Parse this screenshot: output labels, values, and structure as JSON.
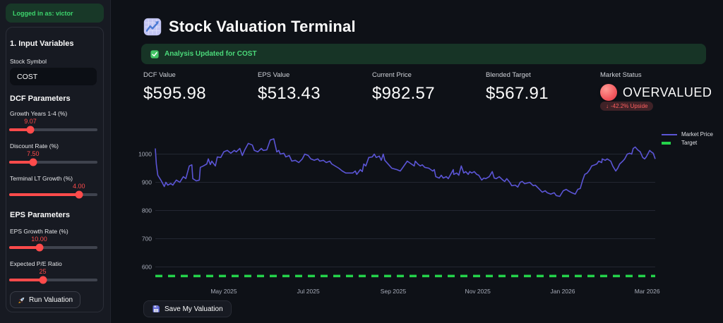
{
  "sidebar": {
    "login_banner": "Logged in as: victor",
    "section1_title": "1. Input Variables",
    "stock_symbol_label": "Stock Symbol",
    "stock_symbol_value": "COST",
    "dcf_section_title": "DCF Parameters",
    "eps_section_title": "EPS Parameters",
    "sliders": [
      {
        "label": "Growth Years 1-4 (%)",
        "value": "9.07",
        "percent": 24
      },
      {
        "label": "Discount Rate (%)",
        "value": "7.50",
        "percent": 27
      },
      {
        "label": "Terminal LT Growth (%)",
        "value": "4.00",
        "percent": 79
      },
      {
        "label": "EPS Growth Rate (%)",
        "value": "10.00",
        "percent": 34
      },
      {
        "label": "Expected P/E Ratio",
        "value": "25",
        "percent": 38
      }
    ],
    "run_button_label": "Run Valuation"
  },
  "header": {
    "title": "Stock Valuation Terminal",
    "success_message": "Analysis Updated for COST"
  },
  "metrics": {
    "items": [
      {
        "label": "DCF Value",
        "value": "$595.98"
      },
      {
        "label": "EPS Value",
        "value": "$513.43"
      },
      {
        "label": "Current Price",
        "value": "$982.57"
      },
      {
        "label": "Blended Target",
        "value": "$567.91"
      }
    ],
    "market_status": {
      "label": "Market Status",
      "status": "OVERVALUED",
      "badge_arrow": "↓",
      "badge_text": "-42.2% Upside"
    }
  },
  "icons": {
    "title": "chart-increasing",
    "banner": "check-mark-button",
    "status": "red-circle",
    "run": "rocket",
    "save": "floppy-disk"
  },
  "colors": {
    "background": "#0e1117",
    "sidebar": "#171a22",
    "accent_red": "#ff4b4b",
    "success_green": "#3dd56d",
    "market_line": "#5b55d6",
    "target_green": "#24d24a",
    "badge_red": "#ff5f5f"
  },
  "footer": {
    "save_button_label": "Save My Valuation"
  },
  "chart_data": {
    "type": "line",
    "title": "",
    "xlabel": "",
    "ylabel": "",
    "ylim": [
      560,
      1070
    ],
    "grid": true,
    "legend_position": "top-right",
    "legend": [
      "Market Price",
      "Target"
    ],
    "y_ticks": [
      600,
      700,
      800,
      900,
      1000
    ],
    "x_ticks": [
      "May 2025",
      "Jul 2025",
      "Sep 2025",
      "Nov 2025",
      "Jan 2026",
      "Mar 2026"
    ],
    "x_tick_pct": [
      13.7,
      30.6,
      47.6,
      64.5,
      81.5,
      98.4
    ],
    "series": [
      {
        "name": "Market Price",
        "type": "line",
        "color": "#5b55d6",
        "points": [
          [
            0,
            1020
          ],
          [
            0.2,
            965
          ],
          [
            0.5,
            925
          ],
          [
            1.1,
            908
          ],
          [
            1.8,
            885
          ],
          [
            2.1,
            900
          ],
          [
            2.5,
            890
          ],
          [
            3.1,
            896
          ],
          [
            3.5,
            890
          ],
          [
            4.2,
            908
          ],
          [
            4.9,
            900
          ],
          [
            5.6,
            920
          ],
          [
            6.1,
            913
          ],
          [
            6.8,
            958
          ],
          [
            7.3,
            962
          ],
          [
            7.5,
            913
          ],
          [
            8.2,
            905
          ],
          [
            8.8,
            908
          ],
          [
            9,
            953
          ],
          [
            9.6,
            958
          ],
          [
            10.3,
            965
          ],
          [
            10.6,
            983
          ],
          [
            11,
            963
          ],
          [
            11.3,
            975
          ],
          [
            12,
            958
          ],
          [
            12.4,
            990
          ],
          [
            13.1,
            988
          ],
          [
            13.7,
            1008
          ],
          [
            14.4,
            1013
          ],
          [
            15.1,
            1003
          ],
          [
            15.8,
            1013
          ],
          [
            16.2,
            1008
          ],
          [
            16.9,
            1020
          ],
          [
            17.4,
            995
          ],
          [
            17.9,
            1015
          ],
          [
            18.6,
            1038
          ],
          [
            19.4,
            1032
          ],
          [
            19.8,
            1013
          ],
          [
            20.5,
            1008
          ],
          [
            21.2,
            1020
          ],
          [
            21.6,
            1013
          ],
          [
            22.3,
            1015
          ],
          [
            23,
            1050
          ],
          [
            23.7,
            1054
          ],
          [
            24.3,
            1008
          ],
          [
            24.7,
            1013
          ],
          [
            25,
            1000
          ],
          [
            25.7,
            1003
          ],
          [
            26.1,
            990
          ],
          [
            26.8,
            995
          ],
          [
            27.3,
            975
          ],
          [
            28,
            978
          ],
          [
            28.7,
            970
          ],
          [
            29.4,
            983
          ],
          [
            29.9,
            1000
          ],
          [
            30.6,
            995
          ],
          [
            31.1,
            983
          ],
          [
            31.8,
            978
          ],
          [
            32.5,
            983
          ],
          [
            32.9,
            975
          ],
          [
            33.6,
            978
          ],
          [
            34.2,
            970
          ],
          [
            34.9,
            975
          ],
          [
            35.3,
            965
          ],
          [
            36.7,
            950
          ],
          [
            37.4,
            940
          ],
          [
            38.1,
            933
          ],
          [
            39.5,
            933
          ],
          [
            40,
            940
          ],
          [
            40.3,
            928
          ],
          [
            41,
            945
          ],
          [
            41.4,
            938
          ],
          [
            41.7,
            965
          ],
          [
            42.1,
            958
          ],
          [
            42.7,
            988
          ],
          [
            43.4,
            990
          ],
          [
            43.8,
            1000
          ],
          [
            44.2,
            988
          ],
          [
            44.8,
            993
          ],
          [
            45.2,
            978
          ],
          [
            45.6,
            1000
          ],
          [
            45.9,
            978
          ],
          [
            46.9,
            958
          ],
          [
            47.3,
            950
          ],
          [
            48.3,
            945
          ],
          [
            49,
            940
          ],
          [
            49.4,
            950
          ],
          [
            50.4,
            975
          ],
          [
            50.8,
            970
          ],
          [
            51.8,
            958
          ],
          [
            52,
            975
          ],
          [
            52.5,
            965
          ],
          [
            53,
            958
          ],
          [
            53.4,
            962
          ],
          [
            53.9,
            953
          ],
          [
            54.7,
            950
          ],
          [
            55.5,
            940
          ],
          [
            55.8,
            945
          ],
          [
            56.1,
            920
          ],
          [
            56.8,
            915
          ],
          [
            57.2,
            925
          ],
          [
            57.6,
            915
          ],
          [
            58.2,
            920
          ],
          [
            58.6,
            913
          ],
          [
            59.6,
            945
          ],
          [
            59.7,
            928
          ],
          [
            60.3,
            933
          ],
          [
            60.7,
            925
          ],
          [
            61.2,
            958
          ],
          [
            61.7,
            933
          ],
          [
            62.1,
            938
          ],
          [
            62.6,
            928
          ],
          [
            62.9,
            938
          ],
          [
            63.3,
            933
          ],
          [
            63.8,
            938
          ],
          [
            64.3,
            928
          ],
          [
            64.7,
            925
          ],
          [
            65.3,
            908
          ],
          [
            65.7,
            915
          ],
          [
            66.1,
            913
          ],
          [
            66.8,
            920
          ],
          [
            67.4,
            938
          ],
          [
            67.8,
            915
          ],
          [
            68.2,
            913
          ],
          [
            68.8,
            920
          ],
          [
            69.5,
            908
          ],
          [
            69.9,
            903
          ],
          [
            70.3,
            913
          ],
          [
            70.9,
            900
          ],
          [
            71.3,
            888
          ],
          [
            72,
            890
          ],
          [
            72.5,
            883
          ],
          [
            73,
            900
          ],
          [
            73.4,
            903
          ],
          [
            73.9,
            895
          ],
          [
            74.9,
            900
          ],
          [
            75.6,
            888
          ],
          [
            76,
            890
          ],
          [
            76.7,
            878
          ],
          [
            77.4,
            865
          ],
          [
            78,
            870
          ],
          [
            78.4,
            863
          ],
          [
            79.1,
            858
          ],
          [
            79.8,
            863
          ],
          [
            80.2,
            853
          ],
          [
            80.9,
            850
          ],
          [
            81.6,
            870
          ],
          [
            82.2,
            875
          ],
          [
            82.6,
            870
          ],
          [
            83.3,
            863
          ],
          [
            84,
            858
          ],
          [
            84.5,
            875
          ],
          [
            85,
            878
          ],
          [
            85.5,
            908
          ],
          [
            85.9,
            928
          ],
          [
            86.4,
            933
          ],
          [
            86.9,
            945
          ],
          [
            87.3,
            958
          ],
          [
            87.9,
            962
          ],
          [
            88.3,
            965
          ],
          [
            88.7,
            975
          ],
          [
            89.3,
            970
          ],
          [
            89.4,
            983
          ],
          [
            90,
            978
          ],
          [
            90.4,
            983
          ],
          [
            91.1,
            975
          ],
          [
            91.5,
            958
          ],
          [
            92.1,
            940
          ],
          [
            92.5,
            950
          ],
          [
            92.9,
            965
          ],
          [
            93.5,
            975
          ],
          [
            93.9,
            983
          ],
          [
            94.4,
            1000
          ],
          [
            94.9,
            1003
          ],
          [
            95.3,
            1000
          ],
          [
            95.6,
            1020
          ],
          [
            96,
            1025
          ],
          [
            96.5,
            1015
          ],
          [
            97,
            1008
          ],
          [
            97.5,
            988
          ],
          [
            97.9,
            983
          ],
          [
            98.2,
            990
          ],
          [
            98.6,
            1003
          ],
          [
            98.9,
            1013
          ],
          [
            99.2,
            1008
          ],
          [
            99.6,
            1003
          ],
          [
            100,
            983
          ]
        ]
      },
      {
        "name": "Target",
        "type": "dashed-line",
        "color": "#24d24a",
        "value": 567.91
      }
    ]
  }
}
